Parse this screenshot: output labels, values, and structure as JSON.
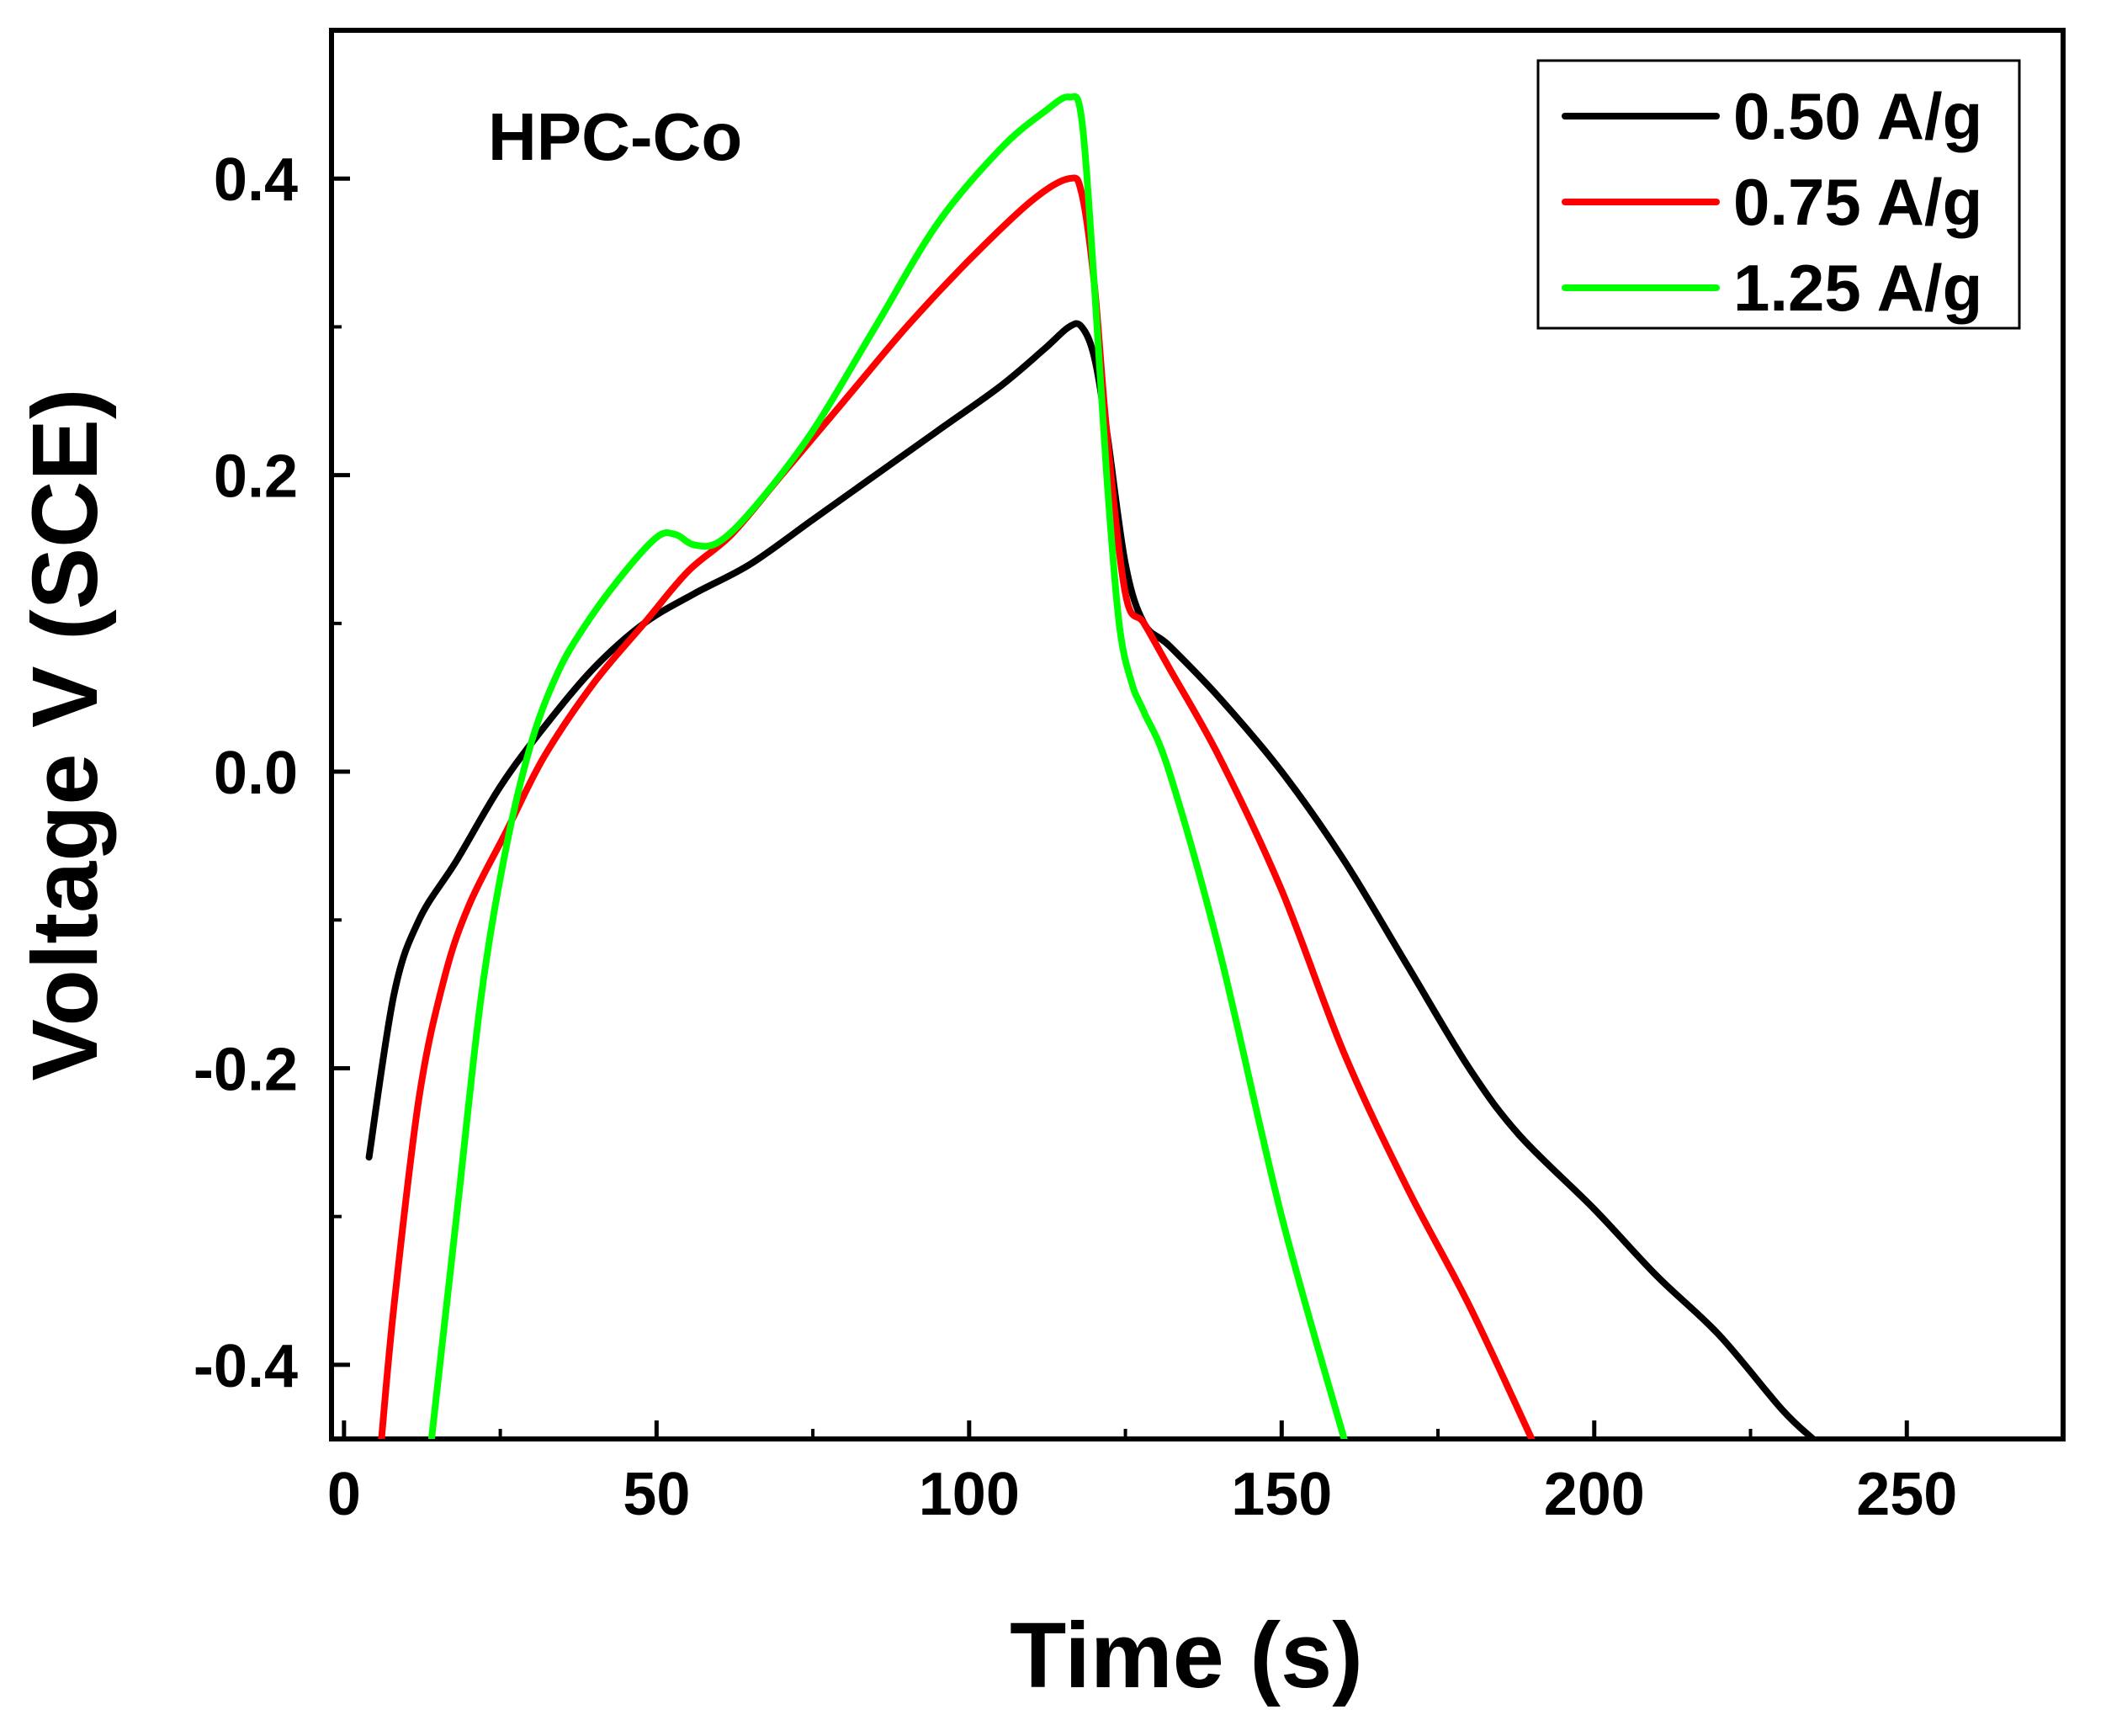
{
  "chart_data": {
    "type": "line",
    "title": "",
    "annotation": "HPC-Co",
    "xlabel": "Time (s)",
    "ylabel": "Voltage V (SCE)",
    "xlim": [
      -2,
      275
    ],
    "ylim": [
      -0.45,
      0.5
    ],
    "xticks": [
      0,
      50,
      100,
      150,
      200,
      250
    ],
    "xtick_labels": [
      "0",
      "50",
      "100",
      "150",
      "200",
      "250"
    ],
    "xminor": [
      25,
      75,
      125,
      175,
      225
    ],
    "yticks": [
      -0.4,
      -0.2,
      0.0,
      0.2,
      0.4
    ],
    "ytick_labels": [
      "-0.4",
      "-0.2",
      "0.0",
      "0.2",
      "0.4"
    ],
    "yminor": [
      -0.3,
      -0.1,
      0.1,
      0.3
    ],
    "legend_position": "top-right",
    "series": [
      {
        "name": "0.50 A/g",
        "color": "#000000",
        "x": [
          4,
          8,
          12,
          18,
          25,
          32,
          40,
          48,
          56,
          65,
          75,
          85,
          95,
          105,
          112,
          116,
          118,
          120,
          122,
          125,
          128,
          132,
          140,
          150,
          160,
          170,
          180,
          188,
          200,
          210,
          220,
          230,
          235
        ],
        "y": [
          -0.26,
          -0.15,
          -0.1,
          -0.06,
          -0.01,
          0.03,
          0.07,
          0.1,
          0.12,
          0.14,
          0.17,
          0.2,
          0.23,
          0.26,
          0.285,
          0.3,
          0.3,
          0.28,
          0.23,
          0.14,
          0.1,
          0.085,
          0.05,
          0.0,
          -0.06,
          -0.13,
          -0.2,
          -0.245,
          -0.295,
          -0.34,
          -0.38,
          -0.43,
          -0.45
        ]
      },
      {
        "name": "0.75 A/g",
        "color": "#ff0000",
        "x": [
          6,
          8,
          12,
          16,
          20,
          26,
          32,
          40,
          48,
          55,
          62,
          70,
          80,
          90,
          100,
          110,
          116,
          118,
          120,
          122,
          125,
          128,
          132,
          140,
          150,
          160,
          170,
          180,
          190
        ],
        "y": [
          -0.45,
          -0.36,
          -0.22,
          -0.14,
          -0.09,
          -0.04,
          0.01,
          0.06,
          0.1,
          0.135,
          0.16,
          0.2,
          0.25,
          0.3,
          0.345,
          0.385,
          0.4,
          0.39,
          0.33,
          0.23,
          0.12,
          0.1,
          0.07,
          0.01,
          -0.08,
          -0.19,
          -0.28,
          -0.36,
          -0.45
        ]
      },
      {
        "name": "1.25 A/g",
        "color": "#00ff00",
        "x": [
          14,
          18,
          22,
          26,
          30,
          34,
          38,
          44,
          50,
          53,
          56,
          60,
          66,
          75,
          85,
          95,
          105,
          112,
          116,
          118,
          120,
          122,
          124,
          126,
          128,
          132,
          140,
          150,
          160
        ],
        "y": [
          -0.45,
          -0.3,
          -0.15,
          -0.05,
          0.02,
          0.065,
          0.095,
          0.13,
          0.158,
          0.16,
          0.153,
          0.155,
          0.18,
          0.23,
          0.3,
          0.37,
          0.42,
          0.445,
          0.455,
          0.44,
          0.33,
          0.2,
          0.1,
          0.06,
          0.04,
          0.0,
          -0.12,
          -0.3,
          -0.45
        ]
      }
    ]
  }
}
